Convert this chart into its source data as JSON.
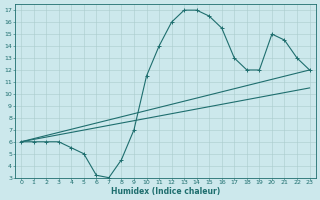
{
  "xlabel": "Humidex (Indice chaleur)",
  "xlim": [
    -0.5,
    23.5
  ],
  "ylim": [
    3,
    17.5
  ],
  "xticks": [
    0,
    1,
    2,
    3,
    4,
    5,
    6,
    7,
    8,
    9,
    10,
    11,
    12,
    13,
    14,
    15,
    16,
    17,
    18,
    19,
    20,
    21,
    22,
    23
  ],
  "yticks": [
    3,
    4,
    5,
    6,
    7,
    8,
    9,
    10,
    11,
    12,
    13,
    14,
    15,
    16,
    17
  ],
  "bg_color": "#cce8ec",
  "grid_color": "#aacccc",
  "line_color": "#1e6e6e",
  "curve_x": [
    0,
    1,
    2,
    3,
    4,
    5,
    6,
    7,
    8,
    9,
    10,
    11,
    12,
    13,
    14,
    15,
    16,
    17,
    18,
    19,
    20,
    21,
    22,
    23
  ],
  "curve_y": [
    6,
    6,
    6,
    6,
    5.5,
    5.0,
    3.2,
    3.0,
    4.5,
    7.0,
    11.5,
    14.0,
    16.0,
    17.0,
    17.0,
    16.5,
    15.5,
    13.0,
    12.0,
    12.0,
    15.0,
    14.5,
    13.0,
    12.0
  ],
  "line2_x": [
    0,
    23
  ],
  "line2_y": [
    6.0,
    10.5
  ],
  "line3_x": [
    0,
    23
  ],
  "line3_y": [
    6.0,
    12.0
  ]
}
